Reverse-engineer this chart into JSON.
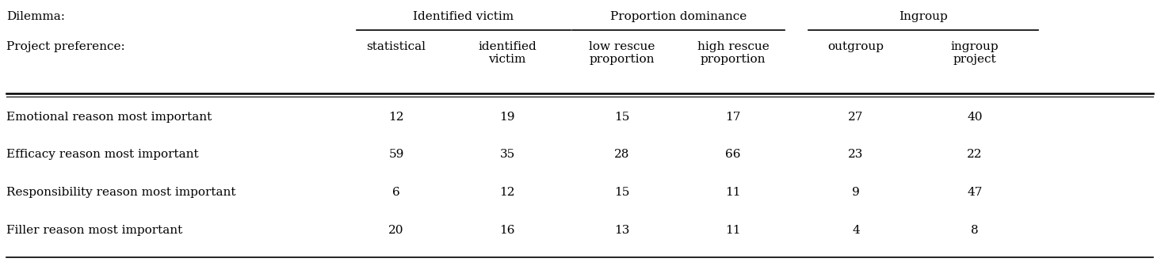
{
  "dilemma_label": "Dilemma:",
  "project_label": "Project preference:",
  "group_headers": [
    "Identified victim",
    "Proportion dominance",
    "Ingroup"
  ],
  "col_headers": [
    "statistical",
    "identified\nvictim",
    "low rescue\nproportion",
    "high rescue\nproportion",
    "outgroup",
    "ingroup\nproject"
  ],
  "row_labels": [
    "Emotional reason most important",
    "Efficacy reason most important",
    "Responsibility reason most important",
    "Filler reason most important"
  ],
  "data": [
    [
      12,
      19,
      15,
      17,
      27,
      40
    ],
    [
      59,
      35,
      28,
      66,
      23,
      22
    ],
    [
      6,
      12,
      15,
      11,
      9,
      47
    ],
    [
      20,
      16,
      13,
      11,
      4,
      8
    ]
  ],
  "bg_color": "#ffffff",
  "text_color": "#000000",
  "figsize": [
    14.7,
    3.36
  ],
  "dpi": 100
}
